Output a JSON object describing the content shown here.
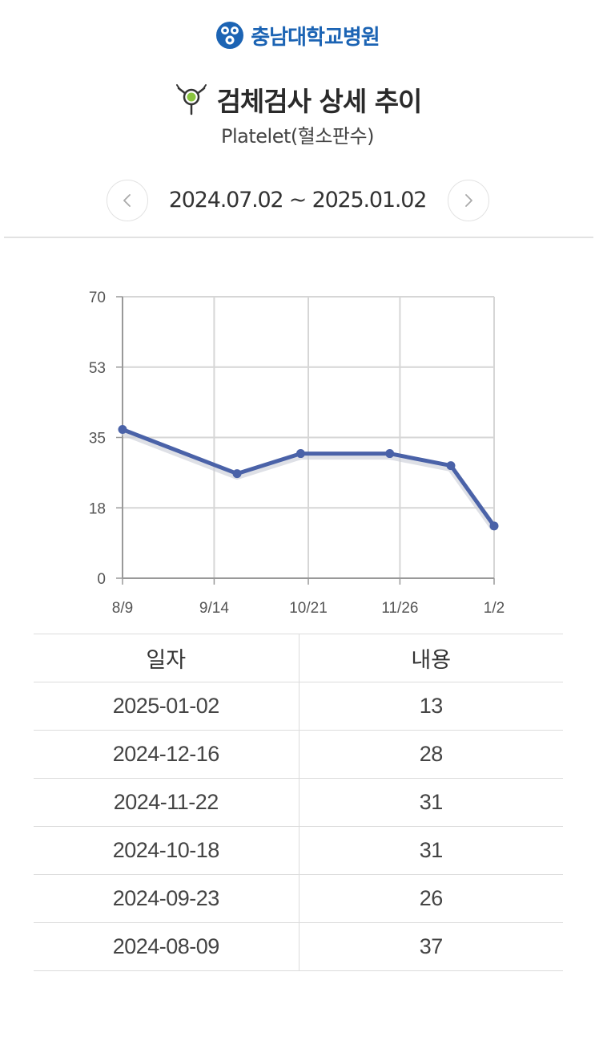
{
  "header": {
    "hospital_name": "충남대학교병원",
    "title": "검체검사 상세 추이",
    "subtitle": "Platelet(혈소판수)"
  },
  "period": {
    "range": "2024.07.02 ~ 2025.01.02",
    "prev_icon": "chevron-left-icon",
    "next_icon": "chevron-right-icon"
  },
  "colors": {
    "brand": "#1c64b4",
    "line": "#4a62a8",
    "grid": "#d6d6d6"
  },
  "chart_data": {
    "type": "line",
    "x": [
      "2024-08-09",
      "2024-09-23",
      "2024-10-18",
      "2024-11-22",
      "2024-12-16",
      "2025-01-02"
    ],
    "series": [
      {
        "values": [
          37,
          26,
          31,
          31,
          28,
          13
        ]
      }
    ],
    "xticks": [
      "8/9",
      "9/14",
      "10/21",
      "11/26",
      "1/2"
    ],
    "xtick_dates": [
      "2024-08-09",
      "2024-09-14",
      "2024-10-21",
      "2024-11-26",
      "2025-01-02"
    ],
    "yticks": [
      "0",
      "18",
      "35",
      "53",
      "70"
    ],
    "ytick_values": [
      0,
      17.5,
      35,
      52.5,
      70
    ],
    "xlim": [
      "2024-08-09",
      "2025-01-02"
    ],
    "ylim": [
      0,
      70
    ],
    "grid": true,
    "legend": "none"
  },
  "table": {
    "headers": [
      "일자",
      "내용"
    ],
    "rows": [
      [
        "2025-01-02",
        "13"
      ],
      [
        "2024-12-16",
        "28"
      ],
      [
        "2024-11-22",
        "31"
      ],
      [
        "2024-10-18",
        "31"
      ],
      [
        "2024-09-23",
        "26"
      ],
      [
        "2024-08-09",
        "37"
      ]
    ]
  }
}
